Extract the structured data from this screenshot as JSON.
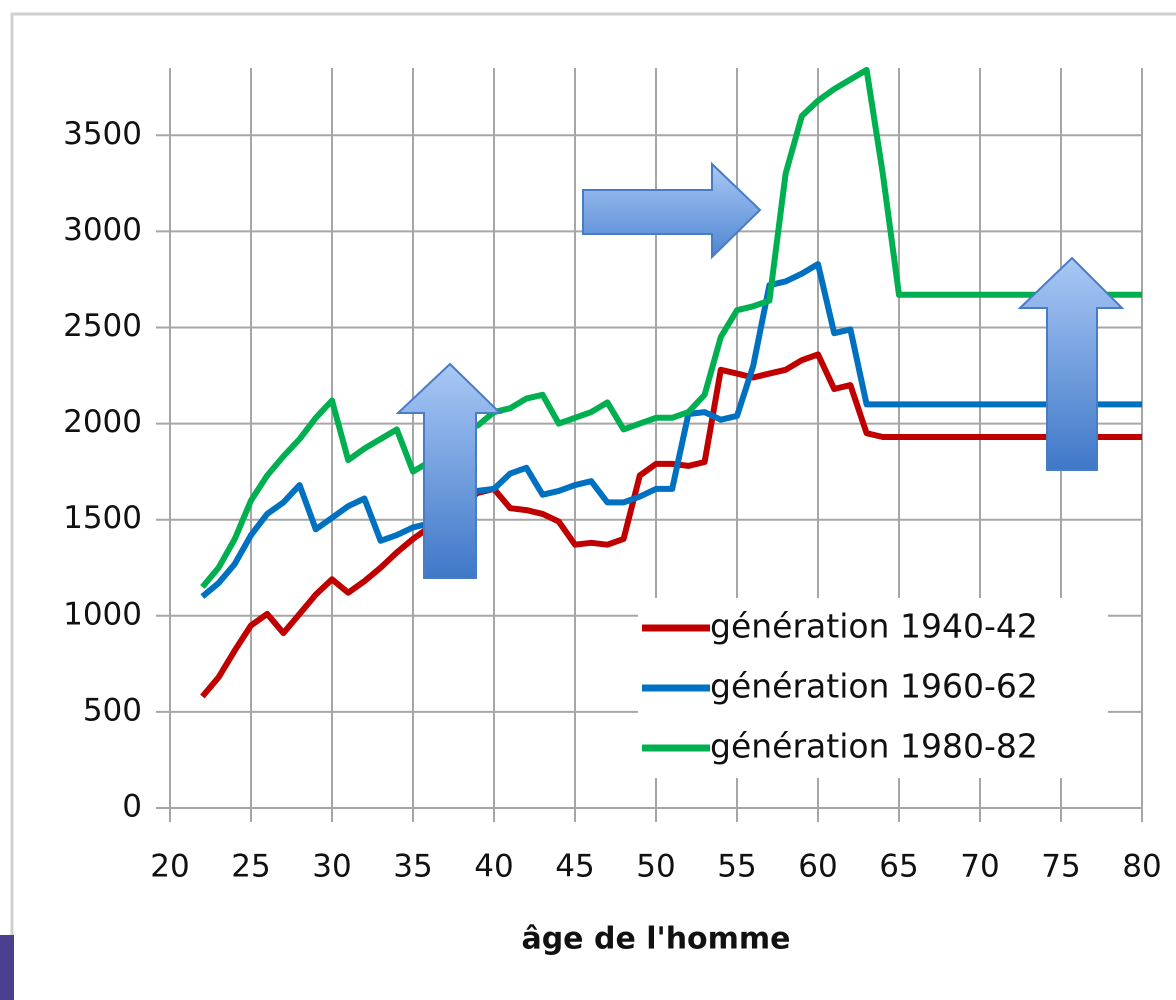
{
  "chart_data": {
    "type": "line",
    "x_label": "âge de l'homme",
    "x": [
      22,
      23,
      24,
      25,
      26,
      27,
      28,
      29,
      30,
      31,
      32,
      33,
      34,
      35,
      36,
      37,
      38,
      39,
      40,
      41,
      42,
      43,
      44,
      45,
      46,
      47,
      48,
      49,
      50,
      51,
      52,
      53,
      54,
      55,
      56,
      57,
      58,
      59,
      60,
      61,
      62,
      63,
      64,
      65,
      66,
      67,
      68,
      69,
      70,
      71,
      72,
      73,
      74,
      75,
      76,
      77,
      78,
      79,
      80
    ],
    "series": [
      {
        "name": "génération 1940-42",
        "color": "#c00000",
        "values": [
          580,
          680,
          820,
          950,
          1010,
          910,
          1010,
          1110,
          1190,
          1120,
          1180,
          1250,
          1330,
          1400,
          1460,
          1530,
          1580,
          1640,
          1660,
          1560,
          1550,
          1530,
          1490,
          1370,
          1380,
          1370,
          1400,
          1730,
          1790,
          1790,
          1780,
          1800,
          2280,
          2260,
          2240,
          2260,
          2280,
          2330,
          2360,
          2180,
          2200,
          1950,
          1930,
          1930,
          1930,
          1930,
          1930,
          1930,
          1930,
          1930,
          1930,
          1930,
          1930,
          1930,
          1930,
          1930,
          1930,
          1930,
          1930
        ]
      },
      {
        "name": "génération 1960-62",
        "color": "#0070c0",
        "values": [
          1100,
          1170,
          1270,
          1420,
          1530,
          1590,
          1680,
          1450,
          1510,
          1570,
          1610,
          1390,
          1420,
          1460,
          1480,
          1530,
          1590,
          1650,
          1660,
          1740,
          1770,
          1630,
          1650,
          1680,
          1700,
          1590,
          1590,
          1620,
          1660,
          1660,
          2050,
          2060,
          2020,
          2040,
          2300,
          2720,
          2740,
          2780,
          2830,
          2470,
          2490,
          2100,
          2100,
          2100,
          2100,
          2100,
          2100,
          2100,
          2100,
          2100,
          2100,
          2100,
          2100,
          2100,
          2100,
          2100,
          2100,
          2100,
          2100
        ]
      },
      {
        "name": "génération 1980-82",
        "color": "#00b050",
        "values": [
          1150,
          1250,
          1400,
          1600,
          1730,
          1830,
          1920,
          2030,
          2120,
          1810,
          1870,
          1920,
          1970,
          1750,
          1800,
          1880,
          1980,
          1990,
          2060,
          2080,
          2130,
          2150,
          2000,
          2030,
          2060,
          2110,
          1970,
          2000,
          2030,
          2030,
          2060,
          2150,
          2450,
          2590,
          2610,
          2640,
          3300,
          3600,
          3680,
          3740,
          3790,
          3840,
          3300,
          2670,
          2670,
          2670,
          2670,
          2670,
          2670,
          2670,
          2670,
          2670,
          2670,
          2670,
          2670,
          2670,
          2670,
          2670,
          2670
        ]
      }
    ],
    "xlim": [
      20,
      80
    ],
    "xticks": [
      20,
      25,
      30,
      35,
      40,
      45,
      50,
      55,
      60,
      65,
      70,
      75,
      80
    ],
    "ylim": [
      0,
      3850
    ],
    "yticks": [
      0,
      500,
      1000,
      1500,
      2000,
      2500,
      3000,
      3500
    ],
    "grid": true,
    "legend": "lower right"
  }
}
